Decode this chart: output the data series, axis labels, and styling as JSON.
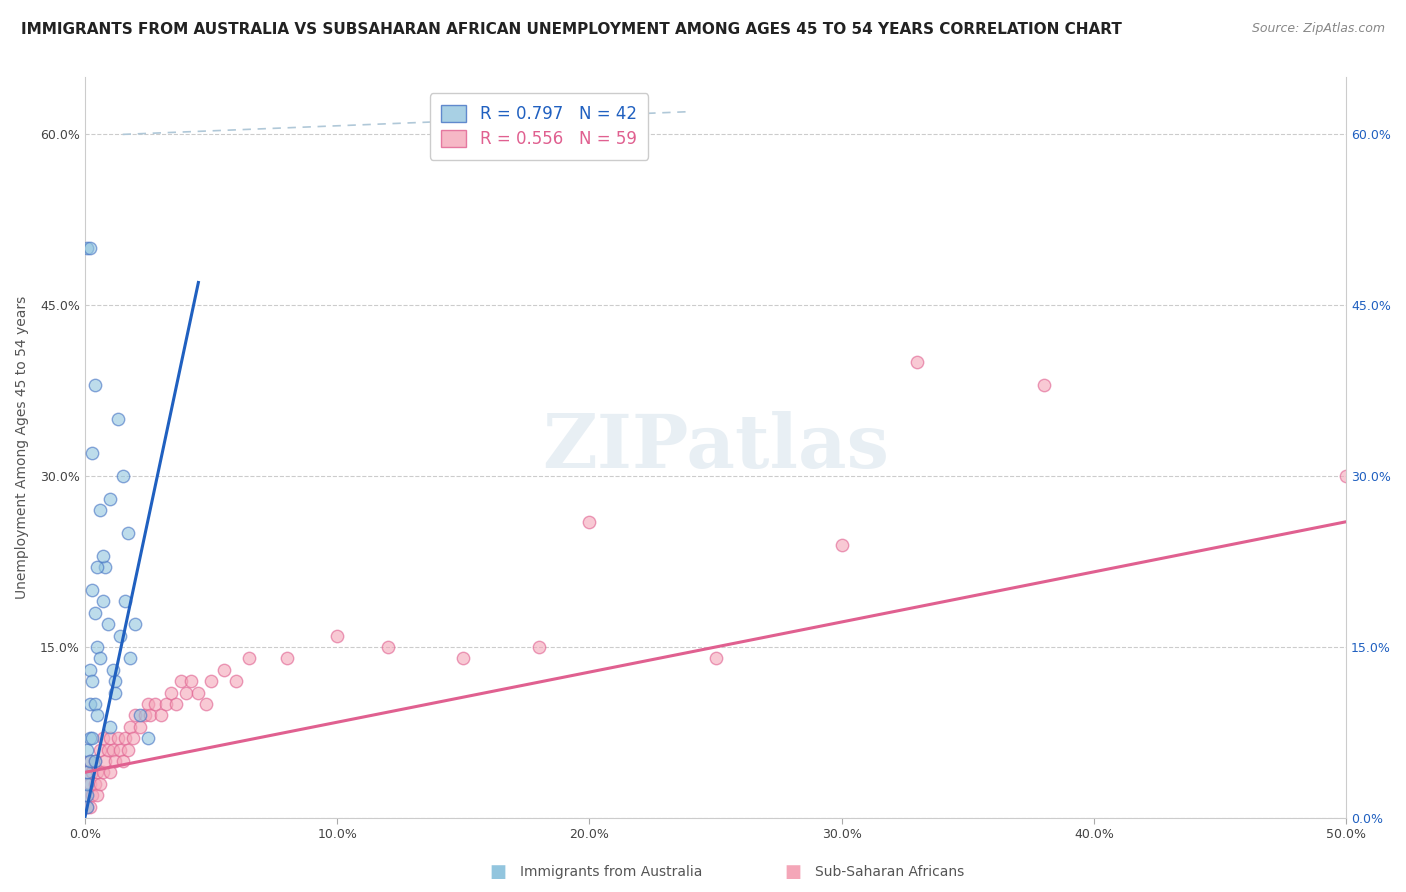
{
  "title": "IMMIGRANTS FROM AUSTRALIA VS SUBSAHARAN AFRICAN UNEMPLOYMENT AMONG AGES 45 TO 54 YEARS CORRELATION CHART",
  "source": "Source: ZipAtlas.com",
  "ylabel": "Unemployment Among Ages 45 to 54 years",
  "xlabel_ticks": [
    "0.0%",
    "10.0%",
    "20.0%",
    "30.0%",
    "40.0%",
    "50.0%"
  ],
  "ylabel_ticks_left": [
    "",
    "15.0%",
    "30.0%",
    "45.0%",
    "60.0%"
  ],
  "ylabel_ticks_right": [
    "0.0%",
    "15.0%",
    "30.0%",
    "45.0%",
    "60.0%"
  ],
  "xlim": [
    0.0,
    0.5
  ],
  "ylim": [
    0.0,
    0.65
  ],
  "legend_entries": [
    {
      "label": "R = 0.797   N = 42",
      "color": "#92c5de"
    },
    {
      "label": "R = 0.556   N = 59",
      "color": "#f4a6b8"
    }
  ],
  "watermark": "ZIPatlas",
  "blue_scatter_x": [
    0.001,
    0.001,
    0.001,
    0.001,
    0.001,
    0.002,
    0.002,
    0.002,
    0.002,
    0.003,
    0.003,
    0.003,
    0.004,
    0.004,
    0.004,
    0.005,
    0.005,
    0.006,
    0.007,
    0.008,
    0.009,
    0.01,
    0.012,
    0.013,
    0.015,
    0.017,
    0.02,
    0.001,
    0.002,
    0.003,
    0.004,
    0.005,
    0.006,
    0.007,
    0.01,
    0.011,
    0.012,
    0.014,
    0.016,
    0.018,
    0.022,
    0.025
  ],
  "blue_scatter_y": [
    0.01,
    0.02,
    0.03,
    0.04,
    0.06,
    0.05,
    0.07,
    0.1,
    0.13,
    0.07,
    0.12,
    0.2,
    0.05,
    0.1,
    0.18,
    0.09,
    0.15,
    0.14,
    0.19,
    0.22,
    0.17,
    0.28,
    0.12,
    0.35,
    0.3,
    0.25,
    0.17,
    0.5,
    0.5,
    0.32,
    0.38,
    0.22,
    0.27,
    0.23,
    0.08,
    0.13,
    0.11,
    0.16,
    0.19,
    0.14,
    0.09,
    0.07
  ],
  "pink_scatter_x": [
    0.001,
    0.001,
    0.001,
    0.002,
    0.002,
    0.002,
    0.003,
    0.003,
    0.004,
    0.004,
    0.005,
    0.005,
    0.006,
    0.006,
    0.007,
    0.007,
    0.008,
    0.009,
    0.01,
    0.01,
    0.011,
    0.012,
    0.013,
    0.014,
    0.015,
    0.016,
    0.017,
    0.018,
    0.019,
    0.02,
    0.022,
    0.024,
    0.025,
    0.026,
    0.028,
    0.03,
    0.032,
    0.034,
    0.036,
    0.038,
    0.04,
    0.042,
    0.045,
    0.048,
    0.05,
    0.055,
    0.06,
    0.065,
    0.08,
    0.1,
    0.12,
    0.15,
    0.18,
    0.2,
    0.25,
    0.3,
    0.33,
    0.38,
    0.5
  ],
  "pink_scatter_y": [
    0.01,
    0.02,
    0.04,
    0.01,
    0.03,
    0.05,
    0.02,
    0.04,
    0.03,
    0.05,
    0.02,
    0.04,
    0.03,
    0.06,
    0.04,
    0.07,
    0.05,
    0.06,
    0.04,
    0.07,
    0.06,
    0.05,
    0.07,
    0.06,
    0.05,
    0.07,
    0.06,
    0.08,
    0.07,
    0.09,
    0.08,
    0.09,
    0.1,
    0.09,
    0.1,
    0.09,
    0.1,
    0.11,
    0.1,
    0.12,
    0.11,
    0.12,
    0.11,
    0.1,
    0.12,
    0.13,
    0.12,
    0.14,
    0.14,
    0.16,
    0.15,
    0.14,
    0.15,
    0.26,
    0.14,
    0.24,
    0.4,
    0.38,
    0.3
  ],
  "blue_line_x": [
    0.0,
    0.045
  ],
  "blue_line_y": [
    0.0,
    0.47
  ],
  "pink_line_x": [
    0.0,
    0.5
  ],
  "pink_line_y": [
    0.04,
    0.26
  ],
  "dash_line_x": [
    0.015,
    0.24
  ],
  "dash_line_y": [
    0.62,
    0.62
  ],
  "blue_color": "#92c5de",
  "pink_color": "#f4a6b8",
  "blue_edge_color": "#4472c4",
  "pink_edge_color": "#e06090",
  "blue_line_color": "#2060c0",
  "pink_line_color": "#e06090",
  "dash_line_color": "#b0c8d8",
  "marker_size": 80,
  "title_fontsize": 11,
  "axis_label_fontsize": 10,
  "tick_fontsize": 9,
  "legend_fontsize": 12
}
